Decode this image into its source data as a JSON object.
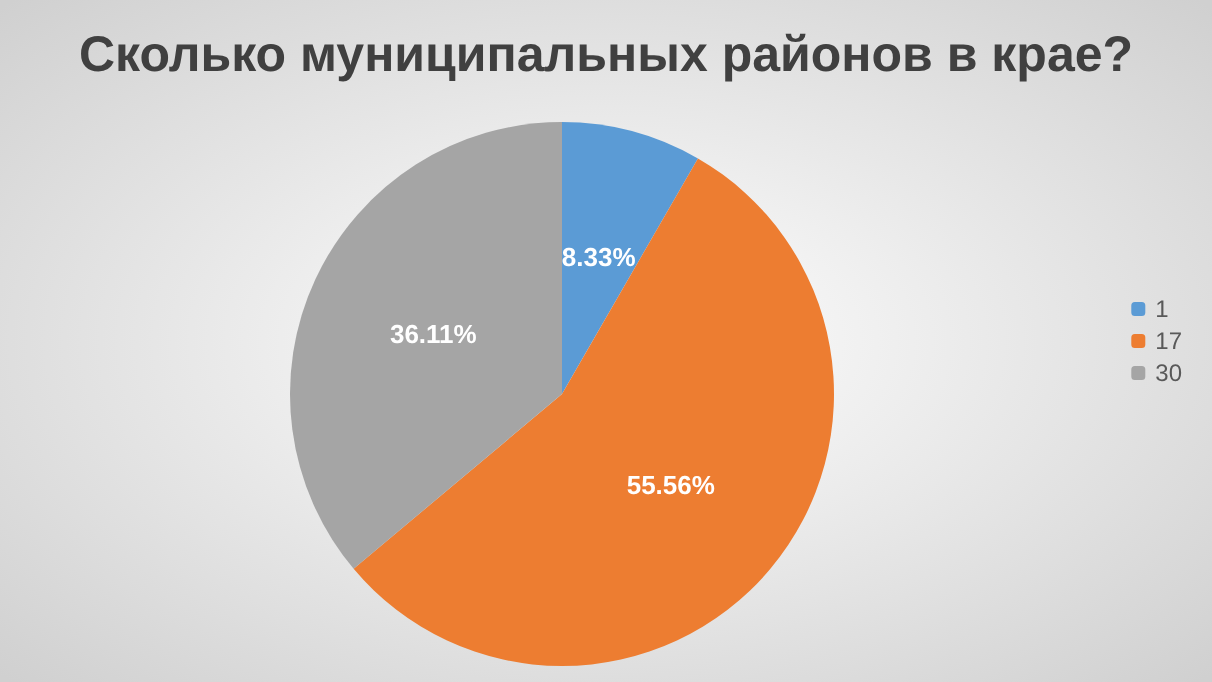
{
  "chart_data": {
    "type": "pie",
    "title": "Сколько муниципальных районов в крае?",
    "categories": [
      "1",
      "17",
      "30"
    ],
    "values": [
      8.33,
      55.56,
      36.11
    ],
    "colors": [
      "#5b9bd5",
      "#ed7d31",
      "#a5a5a5"
    ],
    "value_labels": [
      "8.33%",
      "55.56%",
      "36.11%"
    ],
    "legend": "right"
  }
}
